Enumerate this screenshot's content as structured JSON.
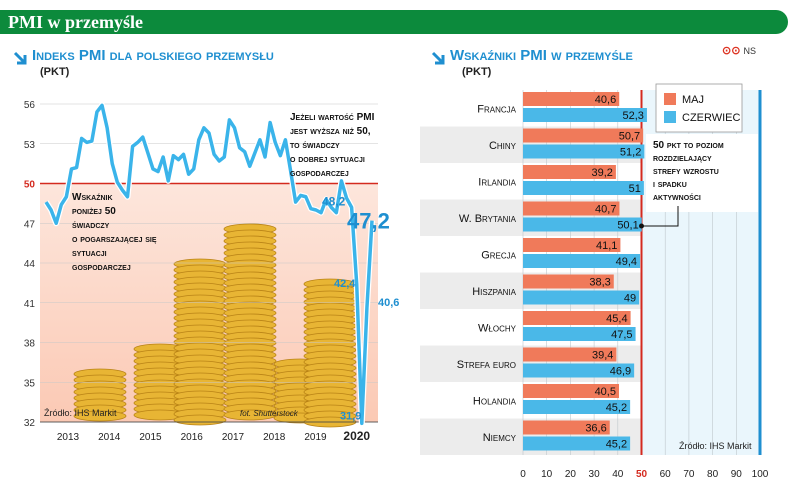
{
  "header": {
    "title": "PMI w przemyśle"
  },
  "left": {
    "title": "Indeks PMI dla polskiego przemysłu",
    "subtitle": "(PKT)",
    "annot_high": [
      "Jeżeli wartość PMI",
      "jest wyższa niż 50,",
      "to świadczy",
      "o dobrej sytuacji",
      "gospodarczej"
    ],
    "annot_low": [
      "Wskaźnik",
      "poniżej 50",
      "świadczy",
      "o pogarszającej się",
      "sytuacji",
      "gospodarczej"
    ],
    "source": "Źródło: IHS Markit",
    "photo": "fot. Shutterstock",
    "callouts": {
      "last": "47,2",
      "prev": "48,2",
      "v1": "42,4",
      "v2": "40,6",
      "min": "31,9"
    },
    "last_year_label": "2020"
  },
  "right": {
    "title": "Wskaźniki PMI w przemyśle",
    "subtitle": "(PKT)",
    "source": "Źródło: IHS Markit",
    "logo": "NS",
    "note": [
      "50 pkt to poziom",
      "rozdzielający",
      "strefy wzrostu",
      "i spadku",
      "aktywności"
    ]
  },
  "colors": {
    "green": "#0c8a3c",
    "blue": "#1f8fd0",
    "maj": "#f07a5a",
    "czerwiec": "#4ab8e8",
    "red": "#d42a1f"
  },
  "chart_data": [
    {
      "type": "line",
      "title": "Indeks PMI dla polskiego przemysłu",
      "ylabel": "(pkt)",
      "ylim": [
        32,
        56
      ],
      "yticks": [
        32,
        35,
        38,
        41,
        44,
        47,
        50,
        53,
        56
      ],
      "xticks": [
        "2013",
        "2014",
        "2015",
        "2016",
        "2017",
        "2018",
        "2019",
        "2020"
      ],
      "series": [
        {
          "values": [
            48.6,
            48.0,
            47.0,
            48.4,
            49.0,
            51.1,
            51.2,
            53.4,
            53.1,
            53.2,
            55.4,
            55.9,
            54.2,
            51.5,
            50.1,
            49.5,
            49.0,
            52.8,
            53.1,
            53.5,
            52.3,
            51.1,
            50.9,
            52.0,
            50.2,
            52.1,
            51.8,
            52.2,
            50.7,
            51.1,
            53.3,
            54.2,
            53.8,
            52.2,
            51.7,
            52.0,
            54.8,
            54.2,
            52.7,
            52.4,
            51.3,
            52.3,
            53.3,
            52.0,
            54.6,
            53.1,
            52.1,
            53.3,
            51.0,
            48.6,
            49.1,
            49.0,
            48.1,
            48.0,
            47.8,
            48.8,
            48.2,
            47.8,
            50.2,
            48.9,
            48.2,
            42.4,
            31.9,
            40.6,
            47.2
          ]
        }
      ],
      "annotations": [
        {
          "label": "48,2",
          "value": 48.2
        },
        {
          "label": "47,2",
          "value": 47.2
        },
        {
          "label": "42,4",
          "value": 42.4
        },
        {
          "label": "40,6",
          "value": 40.6
        },
        {
          "label": "31,9",
          "value": 31.9
        }
      ],
      "threshold": 50
    },
    {
      "type": "bar",
      "title": "Wskaźniki PMI w przemyśle",
      "ylabel": "(pkt)",
      "categories": [
        "Francja",
        "Chiny",
        "Irlandia",
        "W. Brytania",
        "Grecja",
        "Hiszpania",
        "Włochy",
        "Strefa euro",
        "Holandia",
        "Niemcy"
      ],
      "series": [
        {
          "name": "maj",
          "values": [
            40.6,
            50.7,
            39.2,
            40.7,
            41.1,
            38.3,
            45.4,
            39.4,
            40.5,
            36.6
          ]
        },
        {
          "name": "czerwiec",
          "values": [
            52.3,
            51.2,
            51,
            50.1,
            49.4,
            49,
            47.5,
            46.9,
            45.2,
            45.2
          ]
        }
      ],
      "xlim": [
        0,
        100
      ],
      "xticks": [
        0,
        10,
        20,
        30,
        40,
        50,
        60,
        70,
        80,
        90,
        100
      ],
      "threshold": 50,
      "legend": "top-right"
    }
  ]
}
